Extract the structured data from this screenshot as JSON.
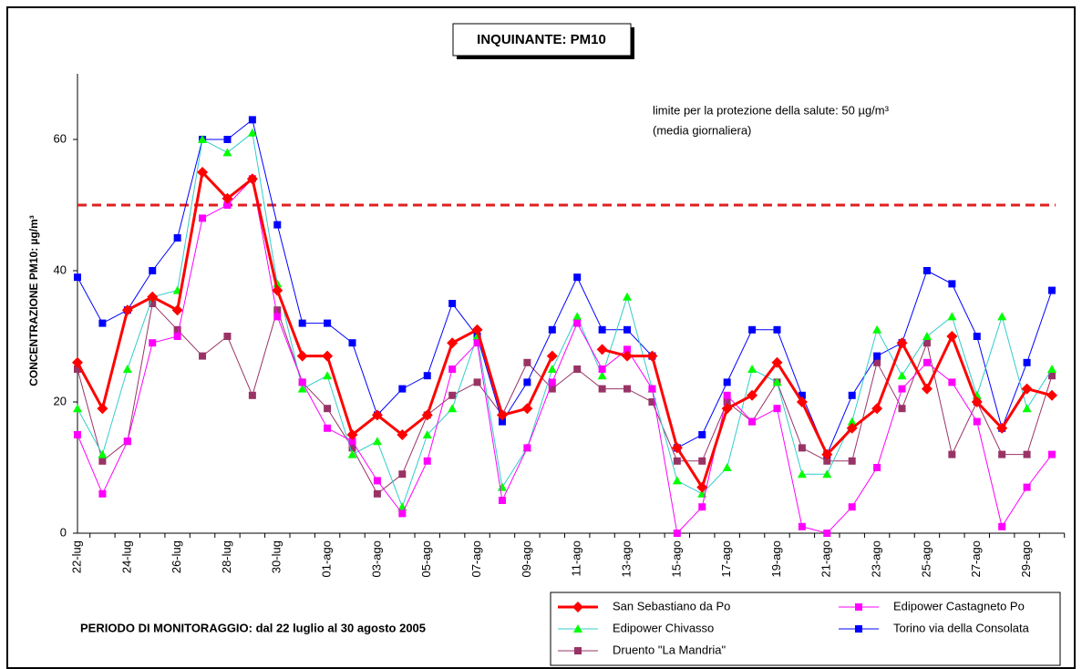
{
  "chart_data": {
    "type": "line",
    "title": "INQUINANTE: PM10",
    "y_label": "CONCENTRAZIONE PM10: µg/m³",
    "annotations": [
      "limite per la protezione della salute: 50 µg/m³",
      "(media giornaliera)"
    ],
    "footer": "PERIODO DI MONITORAGGIO: dal 22 luglio al 30 agosto 2005",
    "reference_line": {
      "value": 50,
      "color": "#e02020"
    },
    "categories": [
      "22-lug",
      null,
      "24-lug",
      null,
      "26-lug",
      null,
      "28-lug",
      null,
      "30-lug",
      null,
      "01-ago",
      null,
      "03-ago",
      null,
      "05-ago",
      null,
      "07-ago",
      null,
      "09-ago",
      null,
      "11-ago",
      null,
      "13-ago",
      null,
      "15-ago",
      null,
      "17-ago",
      null,
      "19-ago",
      null,
      "21-ago",
      null,
      "23-ago",
      null,
      "25-ago",
      null,
      "27-ago",
      null,
      "29-ago",
      null
    ],
    "ylim": [
      0,
      70
    ],
    "yticks": [
      0,
      20,
      40,
      60
    ],
    "series": [
      {
        "name": "San Sebastiano da Po",
        "color": "#ff0000",
        "line_color": "#ff0000",
        "line_width": 3,
        "marker": "diamond",
        "values": [
          26,
          19,
          34,
          36,
          34,
          55,
          51,
          54,
          37,
          27,
          27,
          15,
          18,
          15,
          18,
          29,
          31,
          18,
          19,
          27,
          null,
          28,
          27,
          27,
          13,
          7,
          19,
          21,
          26,
          20,
          12,
          16,
          19,
          29,
          22,
          30,
          20,
          16,
          22,
          21
        ]
      },
      {
        "name": "Edipower Castagneto Po",
        "color": "#ff00ff",
        "line_color": "#ff00ff",
        "line_width": 1,
        "marker": "square",
        "values": [
          15,
          6,
          14,
          29,
          30,
          48,
          50,
          54,
          33,
          23,
          16,
          14,
          8,
          3,
          11,
          25,
          29,
          5,
          13,
          23,
          32,
          25,
          28,
          22,
          0,
          4,
          21,
          17,
          19,
          1,
          0,
          4,
          10,
          22,
          26,
          23,
          17,
          1,
          7,
          12
        ]
      },
      {
        "name": "Edipower Chivasso",
        "color": "#00ff00",
        "line_color": "#33cccc",
        "line_width": 1,
        "marker": "triangle",
        "values": [
          19,
          12,
          25,
          36,
          37,
          60,
          58,
          61,
          38,
          22,
          24,
          12,
          14,
          4,
          15,
          19,
          30,
          7,
          13,
          25,
          33,
          24,
          36,
          22,
          8,
          6,
          10,
          25,
          23,
          9,
          9,
          17,
          31,
          24,
          30,
          33,
          21,
          33,
          19,
          25
        ]
      },
      {
        "name": "Torino via della Consolata",
        "color": "#0000ff",
        "line_color": "#0000ff",
        "line_width": 1,
        "marker": "square",
        "values": [
          39,
          32,
          34,
          40,
          45,
          60,
          60,
          63,
          47,
          32,
          32,
          29,
          18,
          22,
          24,
          35,
          30,
          17,
          23,
          31,
          39,
          31,
          31,
          27,
          13,
          15,
          23,
          31,
          31,
          21,
          12,
          21,
          27,
          29,
          40,
          38,
          30,
          16,
          26,
          37
        ]
      },
      {
        "name": "Druento \"La Mandria\"",
        "color": "#993366",
        "line_color": "#993366",
        "line_width": 1,
        "marker": "square",
        "values": [
          25,
          11,
          14,
          35,
          31,
          27,
          30,
          21,
          34,
          23,
          19,
          13,
          6,
          9,
          18,
          21,
          23,
          18,
          26,
          22,
          25,
          22,
          22,
          20,
          11,
          11,
          20,
          17,
          23,
          13,
          11,
          11,
          26,
          19,
          29,
          12,
          20,
          12,
          12,
          24
        ]
      }
    ]
  }
}
